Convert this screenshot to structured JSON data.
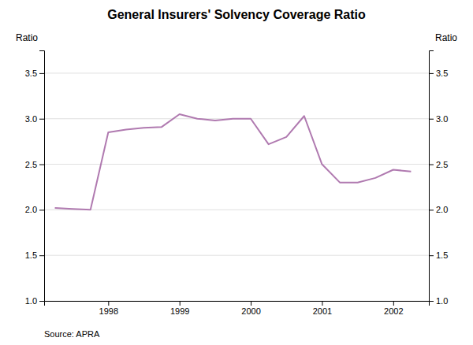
{
  "chart_data": {
    "type": "line",
    "title": "General Insurers' Solvency Coverage Ratio",
    "ylabel": "Ratio",
    "y2label": "Ratio",
    "source": "Source: APRA",
    "x": [
      1997.25,
      1997.5,
      1997.75,
      1998.0,
      1998.25,
      1998.5,
      1998.75,
      1999.0,
      1999.25,
      1999.5,
      1999.75,
      2000.0,
      2000.25,
      2000.5,
      2000.75,
      2001.0,
      2001.25,
      2001.5,
      2001.75,
      2002.0,
      2002.25
    ],
    "values": [
      2.02,
      2.01,
      2.0,
      2.85,
      2.88,
      2.9,
      2.91,
      3.05,
      3.0,
      2.98,
      3.0,
      3.0,
      2.72,
      2.8,
      3.03,
      2.5,
      2.3,
      2.3,
      2.35,
      2.44,
      2.42
    ],
    "color": "#b07ab0",
    "xlim": [
      1997.1,
      2002.5
    ],
    "xticks": [
      1998,
      1999,
      2000,
      2001,
      2002
    ],
    "ylim": [
      1.0,
      3.75
    ],
    "yticks": [
      {
        "value": 1.0,
        "label": "1.0"
      },
      {
        "value": 1.5,
        "label": "1.5"
      },
      {
        "value": 2.0,
        "label": "2.0"
      },
      {
        "value": 2.5,
        "label": "2.5"
      },
      {
        "value": 3.0,
        "label": "3.0"
      },
      {
        "value": 3.5,
        "label": "3.5"
      }
    ],
    "y2lim": [
      1.0,
      3.75
    ],
    "y2ticks": [
      {
        "value": 1.0,
        "label": "1.0"
      },
      {
        "value": 1.5,
        "label": "1.5"
      },
      {
        "value": 2.0,
        "label": "2.0"
      },
      {
        "value": 2.5,
        "label": "2.5"
      },
      {
        "value": 3.0,
        "label": "3.0"
      },
      {
        "value": 3.5,
        "label": "3.5"
      }
    ],
    "grid": true
  }
}
